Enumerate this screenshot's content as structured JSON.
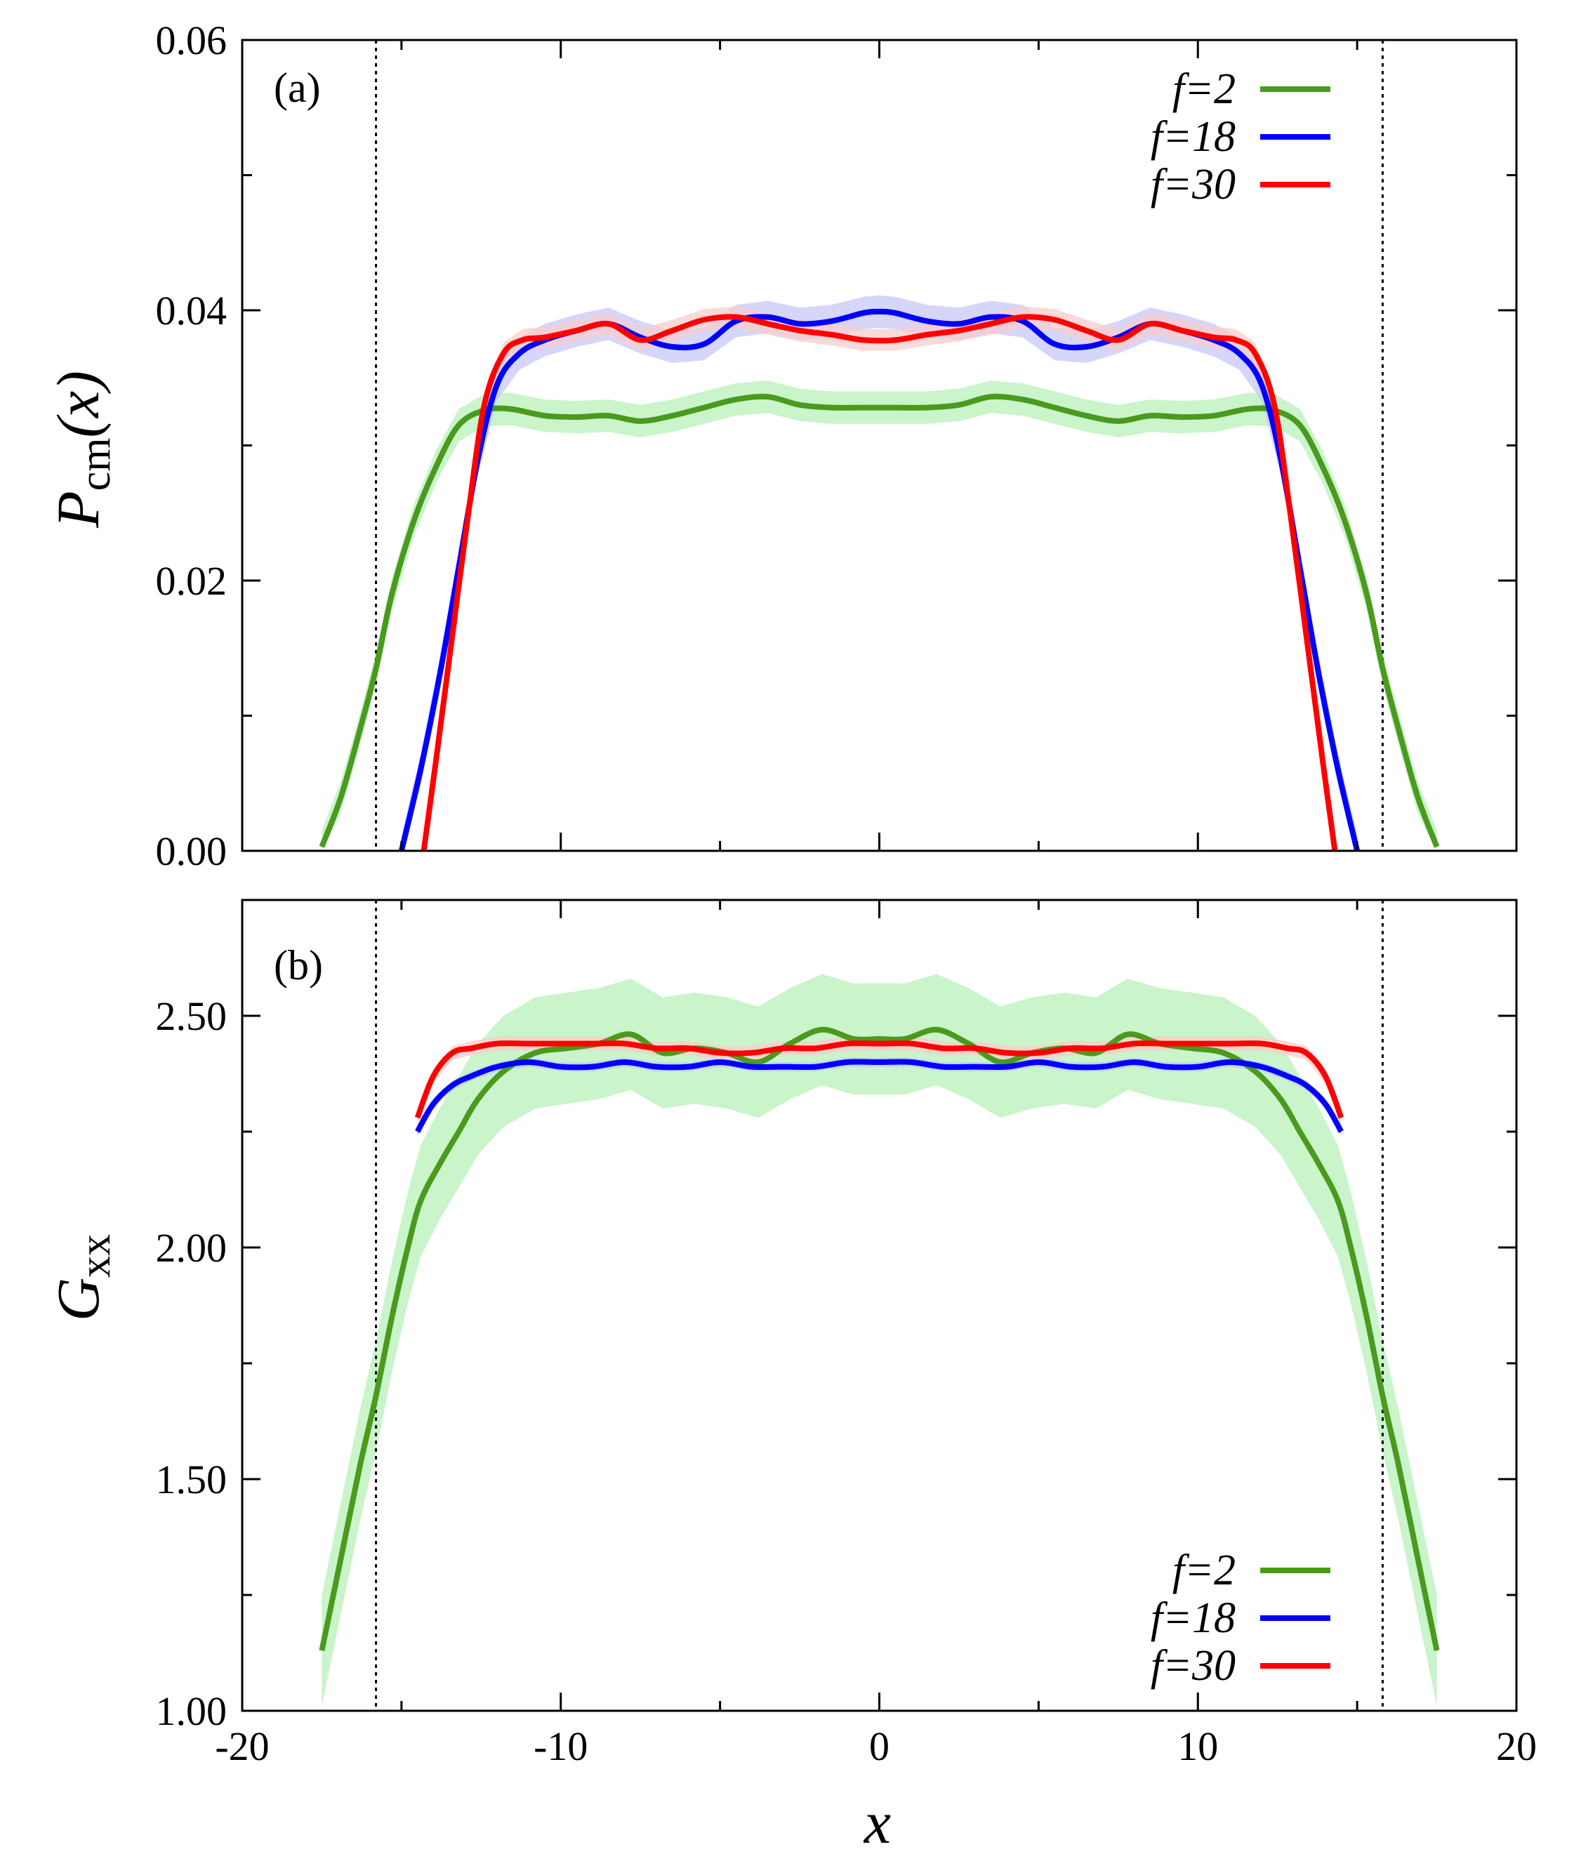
{
  "chart_data": [
    {
      "type": "line",
      "panel_label": "(a)",
      "xlabel": "x",
      "ylabel_main": "P",
      "ylabel_sub": "cm",
      "ylabel_tail": "(x)",
      "xlim": [
        -20,
        20
      ],
      "ylim": [
        0,
        0.06
      ],
      "x_ticks": [
        -20,
        -10,
        0,
        10,
        20
      ],
      "y_ticks": [
        0.0,
        0.02,
        0.04,
        0.06
      ],
      "y_tick_labels": [
        "0.00",
        "0.02",
        "0.04",
        "0.06"
      ],
      "vertical_lines": [
        -15.8,
        15.8
      ],
      "legend_position": "top-right",
      "series": [
        {
          "name": "f=2",
          "color": "#4a9a1e",
          "band_color": "#b8f0b8",
          "x": [
            -17.5,
            -16.9,
            -16.3,
            -15.8,
            -15.3,
            -14.6,
            -13.9,
            -13.2,
            -12.4,
            -11.6,
            -10.5,
            -9.5,
            -8.5,
            -7.5,
            -6.5,
            -5.5,
            -4.5,
            -3.5,
            -2.5,
            -1.5,
            -0.5,
            0.5,
            1.5,
            2.5,
            3.5,
            4.5,
            5.5,
            6.5,
            7.5,
            8.5,
            9.5,
            10.5,
            11.6,
            12.4,
            13.2,
            13.9,
            14.6,
            15.3,
            15.8,
            16.3,
            16.9,
            17.5
          ],
          "y": [
            0.0003,
            0.004,
            0.009,
            0.0135,
            0.019,
            0.0245,
            0.0285,
            0.0315,
            0.0326,
            0.0327,
            0.0322,
            0.0321,
            0.0322,
            0.0318,
            0.0322,
            0.0328,
            0.0334,
            0.0336,
            0.033,
            0.0328,
            0.0328,
            0.0328,
            0.0328,
            0.033,
            0.0336,
            0.0334,
            0.0328,
            0.0322,
            0.0318,
            0.0322,
            0.0321,
            0.0322,
            0.0327,
            0.0326,
            0.0315,
            0.0285,
            0.0245,
            0.019,
            0.0135,
            0.009,
            0.004,
            0.0003
          ],
          "band": 0.0012
        },
        {
          "name": "f=18",
          "color": "#0000ff",
          "band_color": "#c8c8f8",
          "x": [
            -15.0,
            -14.4,
            -13.8,
            -13.2,
            -12.6,
            -12.0,
            -11.3,
            -10.5,
            -9.5,
            -8.5,
            -7.5,
            -6.5,
            -5.5,
            -4.5,
            -3.5,
            -2.5,
            -1.5,
            -0.5,
            0.0,
            0.5,
            1.5,
            2.5,
            3.5,
            4.5,
            5.5,
            6.5,
            7.5,
            8.5,
            9.5,
            10.5,
            11.3,
            12.0,
            12.6,
            13.2,
            13.8,
            14.4,
            15.0
          ],
          "y": [
            0.0,
            0.006,
            0.013,
            0.021,
            0.029,
            0.0345,
            0.0368,
            0.0378,
            0.0385,
            0.039,
            0.038,
            0.0373,
            0.0375,
            0.0392,
            0.0395,
            0.039,
            0.0392,
            0.0398,
            0.0399,
            0.0398,
            0.0392,
            0.039,
            0.0395,
            0.0392,
            0.0375,
            0.0373,
            0.038,
            0.039,
            0.0385,
            0.0378,
            0.0368,
            0.0345,
            0.029,
            0.021,
            0.013,
            0.006,
            0.0
          ],
          "band": 0.0012
        },
        {
          "name": "f=30",
          "color": "#ff0000",
          "band_color": "#f8cccc",
          "x": [
            -14.3,
            -13.9,
            -13.4,
            -12.9,
            -12.4,
            -11.8,
            -11.2,
            -10.5,
            -9.5,
            -8.5,
            -7.5,
            -6.5,
            -5.5,
            -4.5,
            -3.5,
            -2.5,
            -1.5,
            -0.5,
            0.5,
            1.5,
            2.5,
            3.5,
            4.5,
            5.5,
            6.5,
            7.5,
            8.5,
            9.5,
            10.5,
            11.2,
            11.8,
            12.4,
            12.9,
            13.4,
            13.9,
            14.3
          ],
          "y": [
            0.0,
            0.007,
            0.016,
            0.025,
            0.033,
            0.0368,
            0.0378,
            0.038,
            0.0385,
            0.039,
            0.0378,
            0.0385,
            0.0393,
            0.0395,
            0.039,
            0.0385,
            0.0382,
            0.0378,
            0.0378,
            0.0382,
            0.0385,
            0.039,
            0.0395,
            0.0393,
            0.0385,
            0.0378,
            0.039,
            0.0385,
            0.038,
            0.0378,
            0.0368,
            0.033,
            0.025,
            0.016,
            0.007,
            0.0
          ],
          "band": 0.0008
        }
      ]
    },
    {
      "type": "line",
      "panel_label": "(b)",
      "xlabel": "x",
      "ylabel_main": "G",
      "ylabel_sub": "xx",
      "ylabel_tail": "",
      "xlim": [
        -20,
        20
      ],
      "ylim": [
        1.0,
        2.75
      ],
      "x_ticks": [
        -20,
        -10,
        0,
        10,
        20
      ],
      "x_tick_labels": [
        "-20",
        "-10",
        "0",
        "10",
        "20"
      ],
      "y_ticks": [
        1.0,
        1.5,
        2.0,
        2.5
      ],
      "y_tick_labels": [
        "1.00",
        "1.50",
        "2.00",
        "2.50"
      ],
      "vertical_lines": [
        -15.8,
        15.8
      ],
      "legend_position": "bottom-right",
      "series": [
        {
          "name": "f=2",
          "color": "#4a9a1e",
          "band_color": "#b8f0b8",
          "x": [
            -17.5,
            -16.9,
            -16.3,
            -15.8,
            -15.3,
            -14.8,
            -14.4,
            -13.8,
            -13.2,
            -12.6,
            -11.8,
            -10.8,
            -9.8,
            -8.8,
            -7.8,
            -6.8,
            -5.8,
            -4.8,
            -3.8,
            -2.8,
            -1.8,
            -0.8,
            0.0,
            0.8,
            1.8,
            2.8,
            3.8,
            4.8,
            5.8,
            6.8,
            7.8,
            8.8,
            9.8,
            10.8,
            11.8,
            12.6,
            13.2,
            13.8,
            14.4,
            14.8,
            15.3,
            15.8,
            16.3,
            16.9,
            17.5
          ],
          "y": [
            1.13,
            1.33,
            1.53,
            1.68,
            1.85,
            2.0,
            2.1,
            2.18,
            2.25,
            2.32,
            2.38,
            2.42,
            2.43,
            2.44,
            2.46,
            2.42,
            2.43,
            2.42,
            2.4,
            2.44,
            2.47,
            2.45,
            2.45,
            2.45,
            2.47,
            2.44,
            2.4,
            2.42,
            2.43,
            2.42,
            2.46,
            2.44,
            2.43,
            2.42,
            2.38,
            2.32,
            2.25,
            2.18,
            2.1,
            2.0,
            1.85,
            1.68,
            1.53,
            1.33,
            1.13
          ],
          "band": 0.12
        },
        {
          "name": "f=18",
          "color": "#0000ff",
          "band_color": "#c8c8f8",
          "x": [
            -14.5,
            -14.0,
            -13.4,
            -12.8,
            -12.0,
            -11.0,
            -10.0,
            -9.0,
            -8.0,
            -7.0,
            -6.0,
            -5.0,
            -4.0,
            -3.0,
            -2.0,
            -1.0,
            0.0,
            1.0,
            2.0,
            3.0,
            4.0,
            5.0,
            6.0,
            7.0,
            8.0,
            9.0,
            10.0,
            11.0,
            12.0,
            12.8,
            13.4,
            14.0,
            14.5
          ],
          "y": [
            2.25,
            2.31,
            2.35,
            2.37,
            2.39,
            2.4,
            2.39,
            2.39,
            2.4,
            2.39,
            2.39,
            2.4,
            2.39,
            2.39,
            2.39,
            2.4,
            2.4,
            2.4,
            2.39,
            2.39,
            2.39,
            2.4,
            2.39,
            2.39,
            2.4,
            2.39,
            2.39,
            2.4,
            2.39,
            2.37,
            2.35,
            2.31,
            2.25
          ],
          "band": 0.01
        },
        {
          "name": "f=30",
          "color": "#ff0000",
          "band_color": "#f8cccc",
          "x": [
            -14.5,
            -14.0,
            -13.4,
            -12.8,
            -12.0,
            -11.0,
            -10.0,
            -9.0,
            -8.0,
            -7.0,
            -6.0,
            -5.0,
            -4.0,
            -3.0,
            -2.0,
            -1.0,
            0.0,
            1.0,
            2.0,
            3.0,
            4.0,
            5.0,
            6.0,
            7.0,
            8.0,
            9.0,
            10.0,
            11.0,
            12.0,
            12.8,
            13.4,
            14.0,
            14.5
          ],
          "y": [
            2.28,
            2.37,
            2.42,
            2.43,
            2.44,
            2.44,
            2.44,
            2.44,
            2.44,
            2.43,
            2.43,
            2.42,
            2.42,
            2.43,
            2.43,
            2.44,
            2.44,
            2.44,
            2.43,
            2.43,
            2.42,
            2.42,
            2.43,
            2.43,
            2.44,
            2.44,
            2.44,
            2.44,
            2.44,
            2.43,
            2.42,
            2.37,
            2.28
          ],
          "band": 0.015
        }
      ]
    }
  ]
}
